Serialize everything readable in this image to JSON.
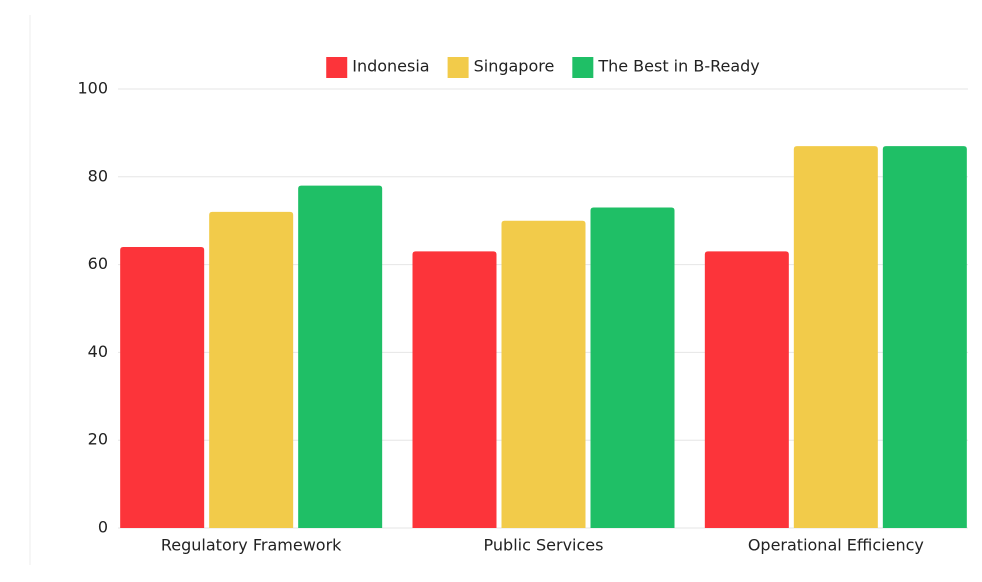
{
  "chart_data": {
    "type": "bar",
    "categories": [
      "Regulatory Framework",
      "Public Services",
      "Operational Efficiency"
    ],
    "series": [
      {
        "name": "Indonesia",
        "color": "#fc343a",
        "values": [
          64,
          63,
          63
        ]
      },
      {
        "name": "Singapore",
        "color": "#f2cb4a",
        "values": [
          72,
          70,
          87
        ]
      },
      {
        "name": "The Best in B-Ready",
        "color": "#1fbf66",
        "values": [
          78,
          73,
          87
        ]
      }
    ],
    "ylim": [
      0,
      100
    ],
    "yticks": [
      0,
      20,
      40,
      60,
      80,
      100
    ],
    "grid": true,
    "legend": "top"
  }
}
